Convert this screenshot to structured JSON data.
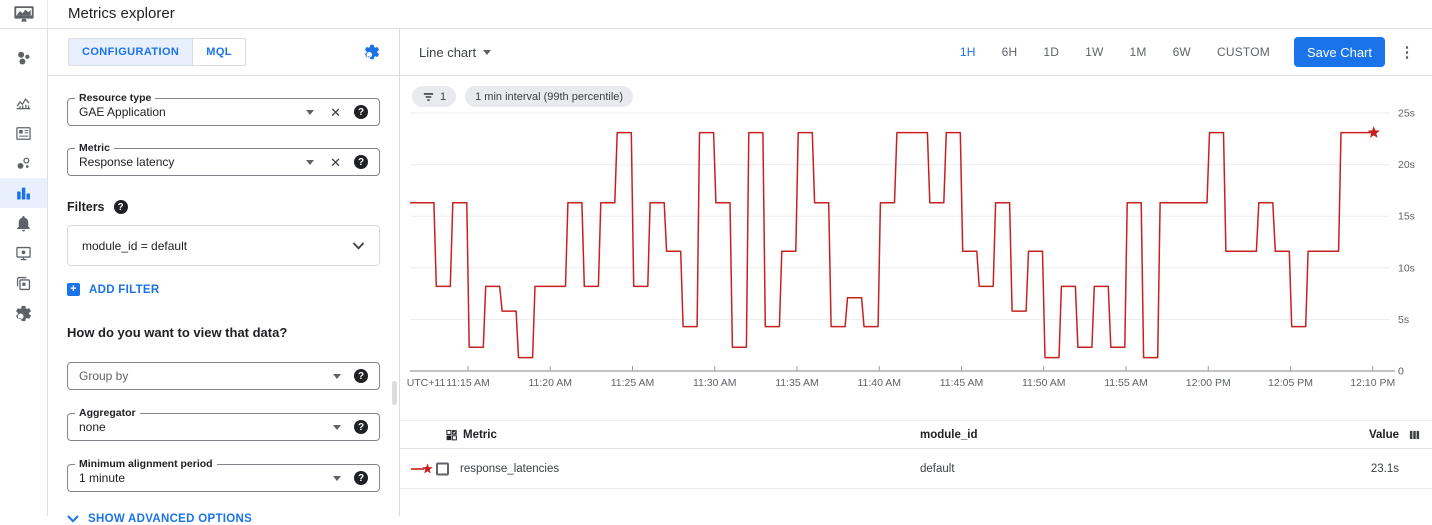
{
  "header": {
    "title": "Metrics explorer"
  },
  "nav": {
    "items": [
      {
        "name": "monitoring-overview",
        "active": false
      },
      {
        "name": "metrics",
        "active": false
      },
      {
        "name": "dashboards",
        "active": false
      },
      {
        "name": "services",
        "active": false
      },
      {
        "name": "metrics-explorer",
        "active": true
      },
      {
        "name": "alerting",
        "active": false
      },
      {
        "name": "uptime-checks",
        "active": false
      },
      {
        "name": "groups",
        "active": false
      },
      {
        "name": "settings",
        "active": false
      }
    ]
  },
  "config": {
    "tabs": [
      {
        "label": "CONFIGURATION",
        "active": true
      },
      {
        "label": "MQL",
        "active": false
      }
    ],
    "resource_type": {
      "label": "Resource type",
      "value": "GAE Application"
    },
    "metric": {
      "label": "Metric",
      "value": "Response latency"
    },
    "filters_label": "Filters",
    "filter_value": "module_id = default",
    "add_filter_label": "ADD FILTER",
    "view_question": "How do you want to view that data?",
    "group_by": {
      "placeholder": "Group by"
    },
    "aggregator": {
      "label": "Aggregator",
      "value": "none"
    },
    "alignment": {
      "label": "Minimum alignment period",
      "value": "1 minute"
    },
    "show_advanced_label": "SHOW ADVANCED OPTIONS"
  },
  "chart_header": {
    "type_selector": "Line chart",
    "time_ranges": [
      "1H",
      "6H",
      "1D",
      "1W",
      "1M",
      "6W",
      "CUSTOM"
    ],
    "active_range": "1H",
    "save_button": "Save Chart"
  },
  "chips": {
    "filter_count": "1",
    "interval": "1 min interval (99th percentile)"
  },
  "chart_data": {
    "type": "line",
    "subtype": "step",
    "title": "",
    "xlabel": "",
    "ylabel": "",
    "timezone_label": "UTC+11",
    "ylim": [
      0,
      25
    ],
    "unit": "seconds",
    "grid": "horizontal",
    "legend_position": "none",
    "y_ticks": [
      25,
      20,
      15,
      10,
      5,
      0
    ],
    "y_tick_labels": [
      "25s",
      "20s",
      "15s",
      "10s",
      "5s",
      "0"
    ],
    "x_tick_labels": [
      "UTC+11",
      "11:15 AM",
      "11:20 AM",
      "11:25 AM",
      "11:30 AM",
      "11:35 AM",
      "11:40 AM",
      "11:45 AM",
      "11:50 AM",
      "11:55 AM",
      "12:00 PM",
      "12:05 PM",
      "12:10 PM"
    ],
    "x": [
      "11:11 AM",
      "11:12 AM",
      "11:13 AM",
      "11:14 AM",
      "11:15 AM",
      "11:16 AM",
      "11:17 AM",
      "11:18 AM",
      "11:19 AM",
      "11:20 AM",
      "11:21 AM",
      "11:22 AM",
      "11:23 AM",
      "11:24 AM",
      "11:25 AM",
      "11:26 AM",
      "11:27 AM",
      "11:28 AM",
      "11:29 AM",
      "11:30 AM",
      "11:31 AM",
      "11:32 AM",
      "11:33 AM",
      "11:34 AM",
      "11:35 AM",
      "11:36 AM",
      "11:37 AM",
      "11:38 AM",
      "11:39 AM",
      "11:40 AM",
      "11:41 AM",
      "11:42 AM",
      "11:43 AM",
      "11:44 AM",
      "11:45 AM",
      "11:46 AM",
      "11:47 AM",
      "11:48 AM",
      "11:49 AM",
      "11:50 AM",
      "11:51 AM",
      "11:52 AM",
      "11:53 AM",
      "11:54 AM",
      "11:55 AM",
      "11:56 AM",
      "11:57 AM",
      "11:58 AM",
      "11:59 AM",
      "12:00 PM",
      "12:01 PM",
      "12:02 PM",
      "12:03 PM",
      "12:04 PM",
      "12:05 PM",
      "12:06 PM",
      "12:07 PM",
      "12:08 PM",
      "12:09 PM",
      "12:10 PM"
    ],
    "series": [
      {
        "name": "response_latencies",
        "color": "#c5221f",
        "end_marker": "star",
        "values": [
          16.3,
          16.3,
          8.2,
          16.3,
          2.3,
          8.2,
          5.8,
          1.3,
          8.2,
          8.2,
          16.3,
          8.2,
          16.3,
          23.1,
          8.2,
          16.3,
          11.6,
          4.3,
          23.1,
          16.3,
          2.3,
          23.1,
          4.3,
          11.6,
          23.1,
          16.3,
          4.3,
          7.1,
          4.3,
          16.3,
          23.1,
          23.1,
          16.3,
          23.1,
          11.6,
          8.2,
          16.3,
          5.8,
          11.6,
          1.3,
          8.2,
          2.3,
          8.2,
          2.3,
          16.3,
          1.3,
          16.3,
          16.3,
          16.3,
          23.1,
          11.6,
          11.6,
          16.3,
          11.6,
          4.3,
          11.6,
          11.6,
          23.1,
          23.1,
          23.1
        ]
      }
    ]
  },
  "table": {
    "columns": [
      "Metric",
      "module_id",
      "Value"
    ],
    "rows": [
      {
        "metric": "response_latencies",
        "module_id": "default",
        "value": "23.1s"
      }
    ]
  },
  "colors": {
    "accent": "#1a73e8",
    "line_red": "#c5221f",
    "active_tab_bg": "#e8f0fe",
    "chip_bg": "#e8eaed"
  }
}
